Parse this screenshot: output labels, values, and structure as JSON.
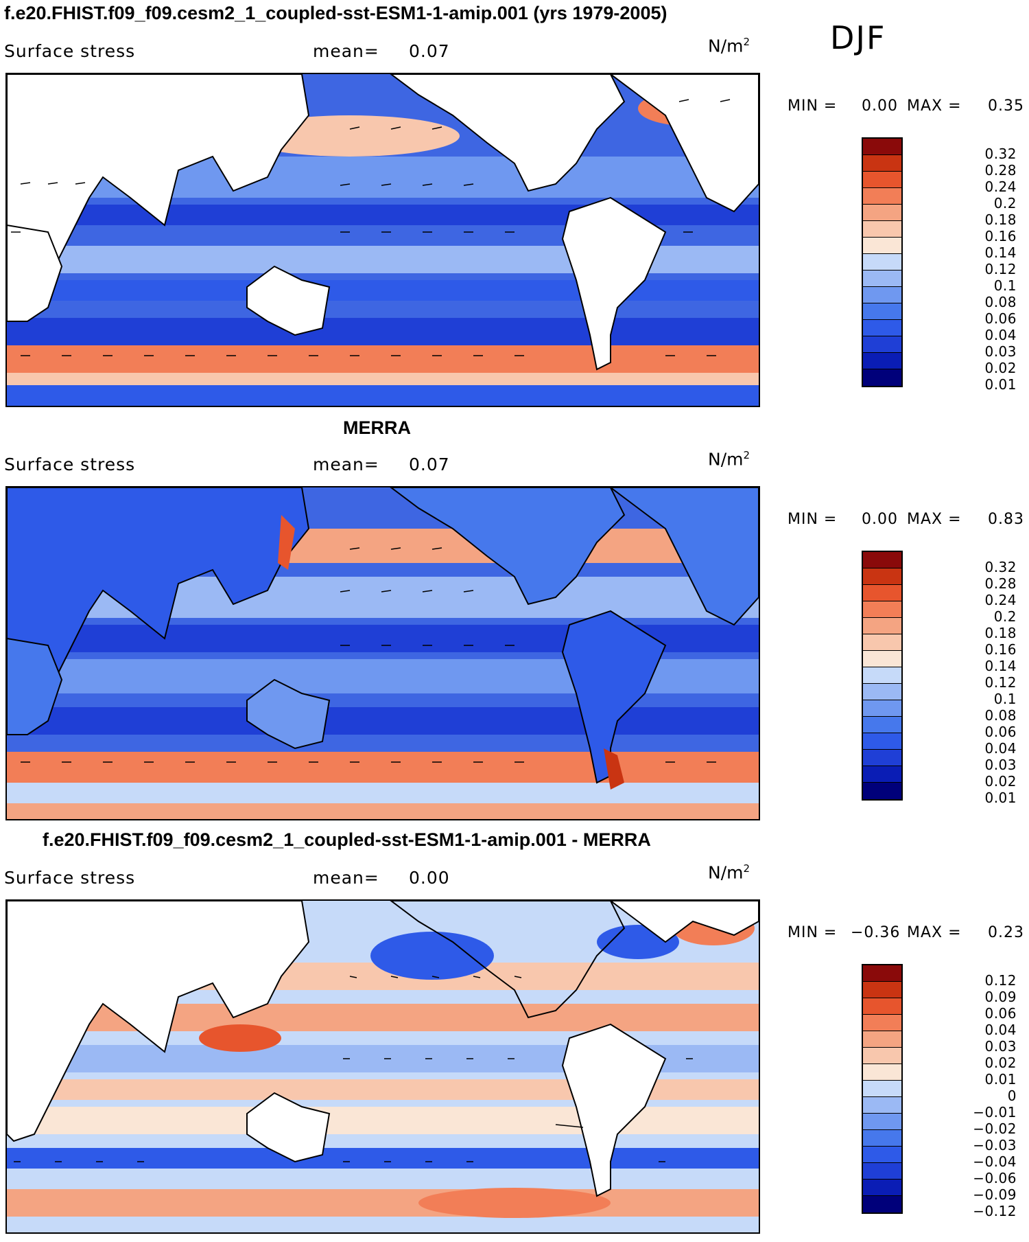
{
  "season": "DJF",
  "colors": {
    "abs_scale": [
      "#00007a",
      "#0a1db5",
      "#1f3fd6",
      "#2e5ae8",
      "#4678ec",
      "#6f98f0",
      "#9bb9f4",
      "#c6daf9",
      "#fae6d6",
      "#f8c7ad",
      "#f4a482",
      "#f27e57",
      "#e7552d",
      "#c93412",
      "#8a0a0a"
    ],
    "diff_scale": [
      "#00007a",
      "#0a1db5",
      "#1f3fd6",
      "#2e5ae8",
      "#4678ec",
      "#6f98f0",
      "#9bb9f4",
      "#c6daf9",
      "#fae6d6",
      "#f8c7ad",
      "#f4a482",
      "#f27e57",
      "#e7552d",
      "#c93412",
      "#8a0a0a"
    ]
  },
  "panels": [
    {
      "title": "f.e20.FHIST.f09_f09.cesm2_1_coupled-sst-ESM1-1-amip.001 (yrs 1979-2005)",
      "variable": "Surface stress",
      "mean_label": "mean=",
      "mean_value": "0.07",
      "units_base": "N/m",
      "units_exp": "2",
      "min_label": "MIN =",
      "min_value": "0.00",
      "max_label": "MAX =",
      "max_value": "0.35",
      "colorbar_labels": [
        "0.32",
        "0.28",
        "0.24",
        "0.2",
        "0.18",
        "0.16",
        "0.14",
        "0.12",
        "0.1",
        "0.08",
        "0.06",
        "0.04",
        "0.03",
        "0.02",
        "0.01"
      ]
    },
    {
      "title": "MERRA",
      "variable": "Surface stress",
      "mean_label": "mean=",
      "mean_value": "0.07",
      "units_base": "N/m",
      "units_exp": "2",
      "min_label": "MIN =",
      "min_value": "0.00",
      "max_label": "MAX =",
      "max_value": "0.83",
      "colorbar_labels": [
        "0.32",
        "0.28",
        "0.24",
        "0.2",
        "0.18",
        "0.16",
        "0.14",
        "0.12",
        "0.1",
        "0.08",
        "0.06",
        "0.04",
        "0.03",
        "0.02",
        "0.01"
      ]
    },
    {
      "title": "f.e20.FHIST.f09_f09.cesm2_1_coupled-sst-ESM1-1-amip.001 - MERRA",
      "variable": "Surface stress",
      "mean_label": "mean=",
      "mean_value": "0.00",
      "units_base": "N/m",
      "units_exp": "2",
      "min_label": "MIN =",
      "min_value": "−0.36",
      "max_label": "MAX =",
      "max_value": "0.23",
      "colorbar_labels": [
        "0.12",
        "0.09",
        "0.06",
        "0.04",
        "0.03",
        "0.02",
        "0.01",
        "0",
        "−0.01",
        "−0.02",
        "−0.03",
        "−0.04",
        "−0.06",
        "−0.09",
        "−0.12"
      ]
    }
  ]
}
